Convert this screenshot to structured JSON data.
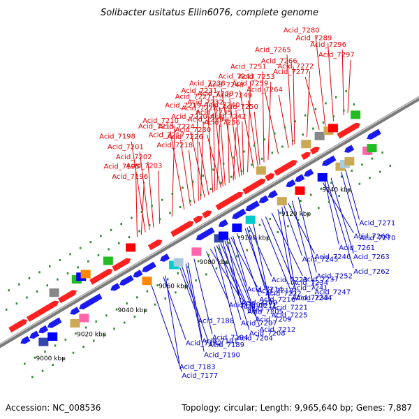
{
  "title": "Solibacter usitatus Ellin6076, complete genome",
  "footer": {
    "accession": "Accession: NC_008536",
    "topology": "Topology: circular; Length: 9,965,640 bp; Genes: 7,887"
  },
  "colors": {
    "top_labels": "#e00000",
    "bottom_labels": "#0000cc",
    "backbone": "#7a7a7a"
  },
  "scale_ticks": [
    {
      "label": "9000 kbp",
      "pos": 0
    },
    {
      "label": "9020 kbp",
      "pos": 20
    },
    {
      "label": "9040 kbp",
      "pos": 40
    },
    {
      "label": "9060 kbp",
      "pos": 60
    },
    {
      "label": "9080 kbp",
      "pos": 80
    },
    {
      "label": "9100 kbp",
      "pos": 100
    },
    {
      "label": "9120 kbp",
      "pos": 120
    },
    {
      "label": "9140 kbp",
      "pos": 140
    }
  ],
  "top_labels": [
    {
      "name": "Acid_7297",
      "pos": 163
    },
    {
      "name": "Acid_7296",
      "pos": 161
    },
    {
      "name": "Acid_7289",
      "pos": 156
    },
    {
      "name": "Acid_7280",
      "pos": 152
    },
    {
      "name": "Acid_7277",
      "pos": 149
    },
    {
      "name": "Acid_7272",
      "pos": 143
    },
    {
      "name": "Acid_7266",
      "pos": 137
    },
    {
      "name": "Acid_7265",
      "pos": 136
    },
    {
      "name": "Acid_7264",
      "pos": 134
    },
    {
      "name": "Acid_7259",
      "pos": 129
    },
    {
      "name": "Acid_7253",
      "pos": 124
    },
    {
      "name": "Acid_7251",
      "pos": 122
    },
    {
      "name": "Acid_7250",
      "pos": 120
    },
    {
      "name": "Acid_7249",
      "pos": 119
    },
    {
      "name": "Acid_7248",
      "pos": 117
    },
    {
      "name": "Acid_7243",
      "pos": 114
    },
    {
      "name": "Acid_7242",
      "pos": 112
    },
    {
      "name": "Acid_7240",
      "pos": 111
    },
    {
      "name": "Acid_7239",
      "pos": 110
    },
    {
      "name": "Acid_7238",
      "pos": 108
    },
    {
      "name": "Acid_7236",
      "pos": 107
    },
    {
      "name": "Acid_7235",
      "pos": 105
    },
    {
      "name": "Acid_7232",
      "pos": 103
    },
    {
      "name": "Acid_7231",
      "pos": 102
    },
    {
      "name": "Acid_7230",
      "pos": 101
    },
    {
      "name": "Acid_7229",
      "pos": 99
    },
    {
      "name": "Acid_7228",
      "pos": 98
    },
    {
      "name": "Acid_7227",
      "pos": 97
    },
    {
      "name": "Acid_7226",
      "pos": 95
    },
    {
      "name": "Acid_7224",
      "pos": 93
    },
    {
      "name": "Acid_7220",
      "pos": 91
    },
    {
      "name": "Acid_7219",
      "pos": 90
    },
    {
      "name": "Acid_7218",
      "pos": 88
    },
    {
      "name": "Acid_7217",
      "pos": 86
    },
    {
      "name": "Acid_7215",
      "pos": 83
    },
    {
      "name": "Acid_7210",
      "pos": 77
    },
    {
      "name": "Acid_7203",
      "pos": 71
    },
    {
      "name": "Acid_7202",
      "pos": 68
    },
    {
      "name": "Acid_7201",
      "pos": 66
    },
    {
      "name": "Acid_7198",
      "pos": 64
    },
    {
      "name": "Acid_7196",
      "pos": 62
    },
    {
      "name": "Acid_7195",
      "pos": 60
    }
  ],
  "bottom_labels": [
    {
      "name": "Acid_7271",
      "pos": 150
    },
    {
      "name": "Acid_7270",
      "pos": 148
    },
    {
      "name": "Acid_7263",
      "pos": 143
    },
    {
      "name": "Acid_7262",
      "pos": 141
    },
    {
      "name": "Acid_7260",
      "pos": 139
    },
    {
      "name": "Acid_7261",
      "pos": 140
    },
    {
      "name": "Acid_7252",
      "pos": 127
    },
    {
      "name": "Acid_7247",
      "pos": 124
    },
    {
      "name": "Acid_7246",
      "pos": 122
    },
    {
      "name": "Acid_7237",
      "pos": 114
    },
    {
      "name": "Acid_7241",
      "pos": 117
    },
    {
      "name": "Acid_7225",
      "pos": 105
    },
    {
      "name": "Acid_7223",
      "pos": 103
    },
    {
      "name": "Acid_7234",
      "pos": 111
    },
    {
      "name": "Acid_7233",
      "pos": 109
    },
    {
      "name": "Acid_7244",
      "pos": 119
    },
    {
      "name": "Acid_7245",
      "pos": 120
    },
    {
      "name": "Acid_7216",
      "pos": 97
    },
    {
      "name": "Acid_7221",
      "pos": 101
    },
    {
      "name": "Acid_7212",
      "pos": 93
    },
    {
      "name": "Acid_7214",
      "pos": 95
    },
    {
      "name": "Acid_7222",
      "pos": 102
    },
    {
      "name": "Acid_7207",
      "pos": 88
    },
    {
      "name": "Acid_7208",
      "pos": 90
    },
    {
      "name": "Acid_7200",
      "pos": 84
    },
    {
      "name": "Acid_7211",
      "pos": 92
    },
    {
      "name": "Acid_7194",
      "pos": 76
    },
    {
      "name": "Acid_7204",
      "pos": 86
    },
    {
      "name": "Acid_7213",
      "pos": 94
    },
    {
      "name": "Acid_7205",
      "pos": 87
    },
    {
      "name": "Acid_7191",
      "pos": 73
    },
    {
      "name": "Acid_7190",
      "pos": 72
    },
    {
      "name": "Acid_7199",
      "pos": 82
    },
    {
      "name": "glyQ",
      "pos": 89
    },
    {
      "name": "Acid_7209",
      "pos": 91
    },
    {
      "name": "Acid_7183",
      "pos": 62
    },
    {
      "name": "Acid_7188",
      "pos": 69
    },
    {
      "name": "Acid_7182",
      "pos": 61
    },
    {
      "name": "Acid_7189",
      "pos": 70
    },
    {
      "name": "Acid_7177",
      "pos": 55
    }
  ],
  "label_positions_note": ""
}
